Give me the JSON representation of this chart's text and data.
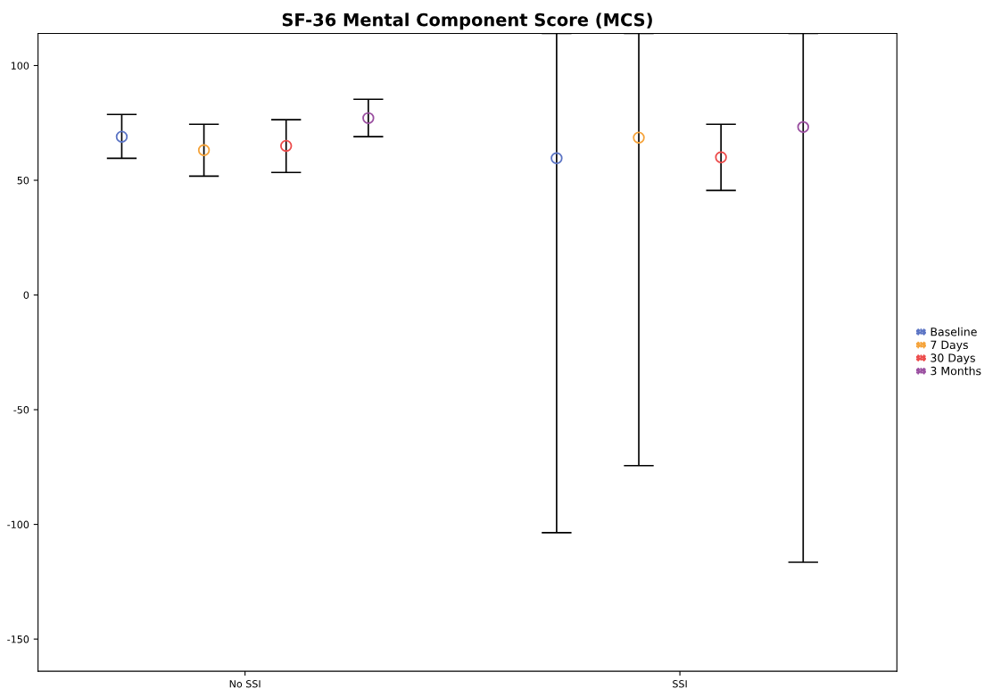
{
  "chart_data": {
    "type": "scatter",
    "title": "SF-36 Mental Component Score (MCS)",
    "categories": [
      "No SSI",
      "SSI"
    ],
    "series": [
      {
        "name": "Baseline",
        "color": "#5b74c4",
        "values": [
          69,
          59.6
        ],
        "errors": [
          [
            59.6,
            78.7
          ],
          [
            -103.6,
            114
          ]
        ]
      },
      {
        "name": "7 Days",
        "color": "#f5a33a",
        "values": [
          63.1,
          68.6
        ],
        "errors": [
          [
            51.8,
            74.4
          ],
          [
            -74.4,
            114
          ]
        ]
      },
      {
        "name": "30 Days",
        "color": "#ec4b4b",
        "values": [
          65,
          60
        ],
        "errors": [
          [
            53.4,
            76.4
          ],
          [
            45.6,
            74.4
          ]
        ]
      },
      {
        "name": "3 Months",
        "color": "#9a4fa0",
        "values": [
          77.1,
          73.2
        ],
        "errors": [
          [
            69,
            85.3
          ],
          [
            -116.5,
            114
          ]
        ]
      }
    ],
    "ylim": [
      -164,
      114
    ],
    "yticks": [
      -150,
      -100,
      -50,
      0,
      50,
      100
    ],
    "marker": "circle",
    "grid": false,
    "legend": "right"
  }
}
